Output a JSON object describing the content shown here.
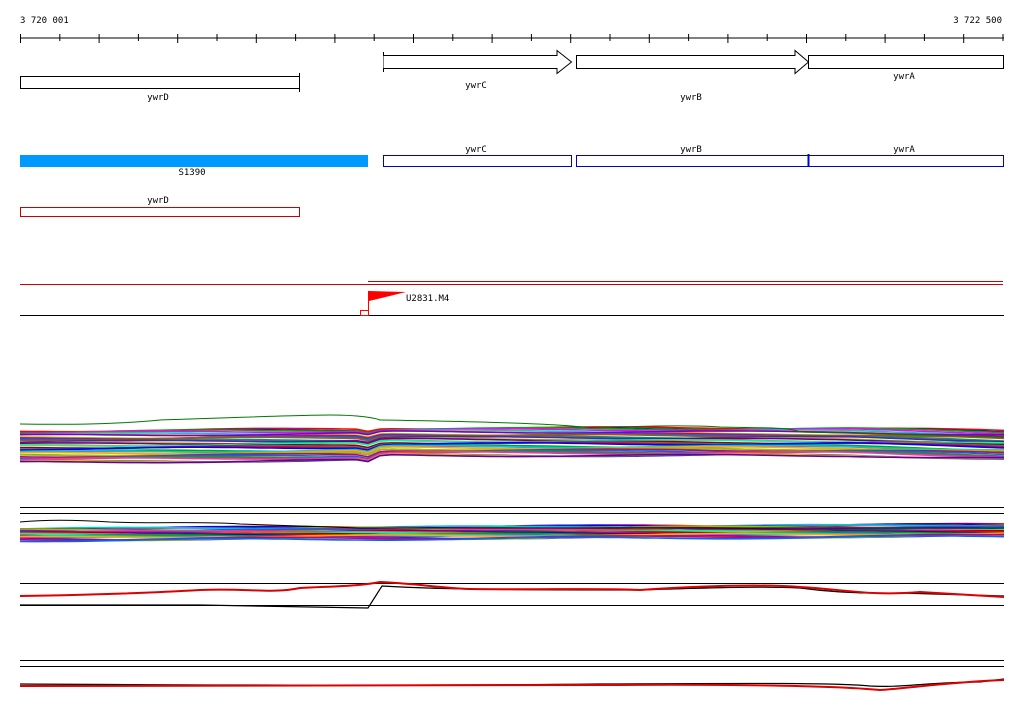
{
  "ruler": {
    "start_label": "3 720 001",
    "end_label": "3 722 500"
  },
  "genes": [
    {
      "name": "ywrD",
      "strand": "-"
    },
    {
      "name": "ywrC",
      "strand": "+"
    },
    {
      "name": "ywrB",
      "strand": "+"
    },
    {
      "name": "ywrA",
      "strand": "+"
    }
  ],
  "transcripts": [
    {
      "name": "S1390",
      "color": "#0099ff",
      "filled": true
    },
    {
      "name": "ywrC",
      "color": "#0000cc",
      "filled": false
    },
    {
      "name": "ywrB",
      "color": "#0000cc",
      "filled": false
    },
    {
      "name": "ywrA",
      "color": "#0000cc",
      "filled": false
    },
    {
      "name": "ywrD",
      "color": "#cc0000",
      "filled": false
    }
  ],
  "tss": {
    "label": "U2831.M4",
    "color": "#ff0000"
  },
  "colors": {
    "accent_red": "#ff0000",
    "feature_blue": "#0099ff",
    "outline_blue": "#0000cc"
  }
}
